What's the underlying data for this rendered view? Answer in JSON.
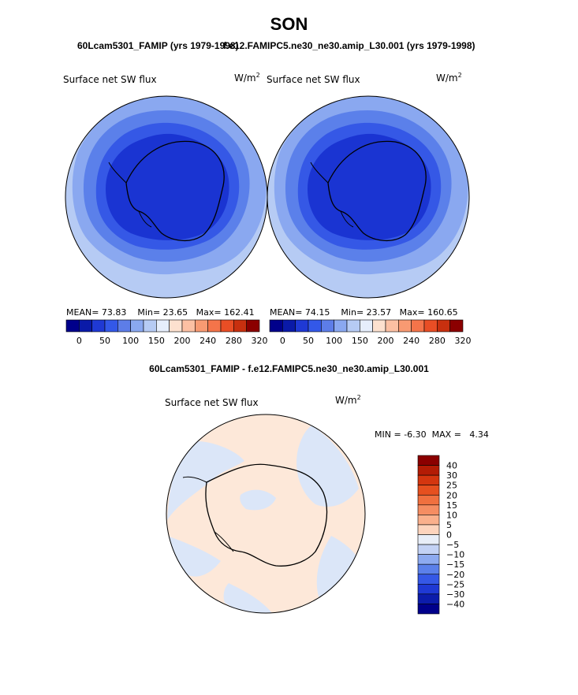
{
  "header": {
    "season": "SON",
    "case_left": "60Lcam5301_FAMIP (yrs 1979-1998)",
    "case_right": "f.e12.FAMIPC5.ne30_ne30.amip_L30.001 (yrs 1979-1998)",
    "diff_title": "60Lcam5301_FAMIP - f.e12.FAMIPC5.ne30_ne30.amip_L30.001"
  },
  "panels": {
    "left": {
      "variable": "Surface net SW flux",
      "units": "W/m",
      "units_exp": "2",
      "mean_label": "MEAN=",
      "mean": "73.83",
      "min_label": "Min=",
      "min": "23.65",
      "max_label": "Max=",
      "max": "162.41"
    },
    "right": {
      "variable": "Surface net SW flux",
      "units": "W/m",
      "units_exp": "2",
      "mean_label": "MEAN=",
      "mean": "74.15",
      "min_label": "Min=",
      "min": "23.57",
      "max_label": "Max=",
      "max": "160.65"
    },
    "diff": {
      "variable": "Surface net SW flux",
      "units": "W/m",
      "units_exp": "2",
      "min_label": "MIN =",
      "min": "-6.30",
      "max_label": "MAX =",
      "max": "4.34"
    }
  },
  "colorbar_abs": {
    "labels": [
      "0",
      "50",
      "100",
      "150",
      "200",
      "240",
      "280",
      "320"
    ],
    "colors": [
      "#00008b",
      "#0a1aa8",
      "#1f39d4",
      "#3358e8",
      "#5d7de8",
      "#8aa8f0",
      "#b6cbf4",
      "#e6eefc",
      "#fde1cf",
      "#fcc0a3",
      "#f89a72",
      "#f4744a",
      "#e94e25",
      "#c8300f",
      "#8b0000"
    ]
  },
  "colorbar_diff": {
    "labels": [
      "40",
      "30",
      "25",
      "20",
      "15",
      "10",
      "5",
      "0",
      "−5",
      "−10",
      "−15",
      "−20",
      "−25",
      "−30",
      "−40"
    ],
    "colors": [
      "#8b0000",
      "#b31c05",
      "#d4360f",
      "#e6501f",
      "#f0703f",
      "#f58d62",
      "#fab08c",
      "#fdd4bd",
      "#e8eef8",
      "#c3d2f5",
      "#8daaf0",
      "#5b80ea",
      "#3558e6",
      "#1f39d4",
      "#0c1cab",
      "#00008b"
    ]
  },
  "colors": {
    "ice_dark": "#1a34d2",
    "ice_mid": "#3558e6",
    "ocean_near": "#5b80ea",
    "ocean_mid": "#8aa8f0",
    "ocean_far": "#b6cbf4",
    "diff_pos": "#fde8d9",
    "diff_neg": "#dbe6f8"
  }
}
